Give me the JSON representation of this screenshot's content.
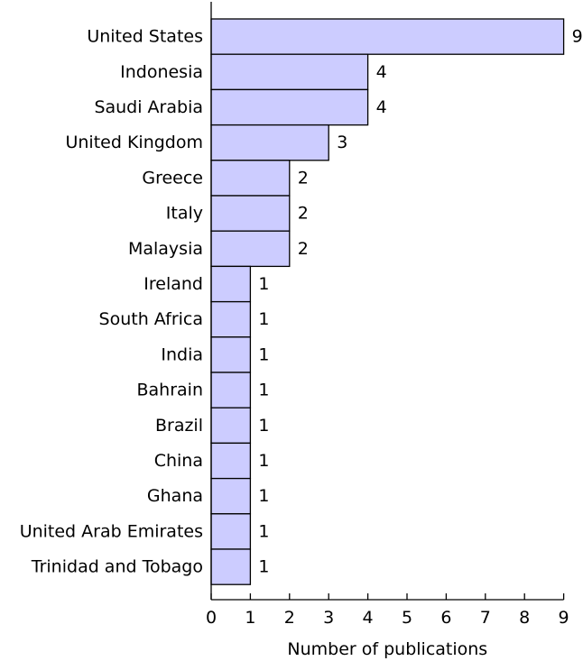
{
  "chart_data": {
    "type": "bar",
    "orientation": "horizontal",
    "categories": [
      "United States",
      "Indonesia",
      "Saudi Arabia",
      "United Kingdom",
      "Greece",
      "Italy",
      "Malaysia",
      "Ireland",
      "South Africa",
      "India",
      "Bahrain",
      "Brazil",
      "China",
      "Ghana",
      "United Arab Emirates",
      "Trinidad and Tobago"
    ],
    "values": [
      9,
      4,
      4,
      3,
      2,
      2,
      2,
      1,
      1,
      1,
      1,
      1,
      1,
      1,
      1,
      1
    ],
    "data_labels": [
      "9",
      "4",
      "4",
      "3",
      "2",
      "2",
      "2",
      "1",
      "1",
      "1",
      "1",
      "1",
      "1",
      "1",
      "1",
      "1"
    ],
    "xlabel": "Number of publications",
    "ylabel": "",
    "xlim": [
      0,
      9
    ],
    "x_ticks": [
      "0",
      "1",
      "2",
      "3",
      "4",
      "5",
      "6",
      "7",
      "8",
      "9"
    ],
    "grid": false,
    "bar_color": "#ccccff",
    "edge_color": "#000000"
  }
}
